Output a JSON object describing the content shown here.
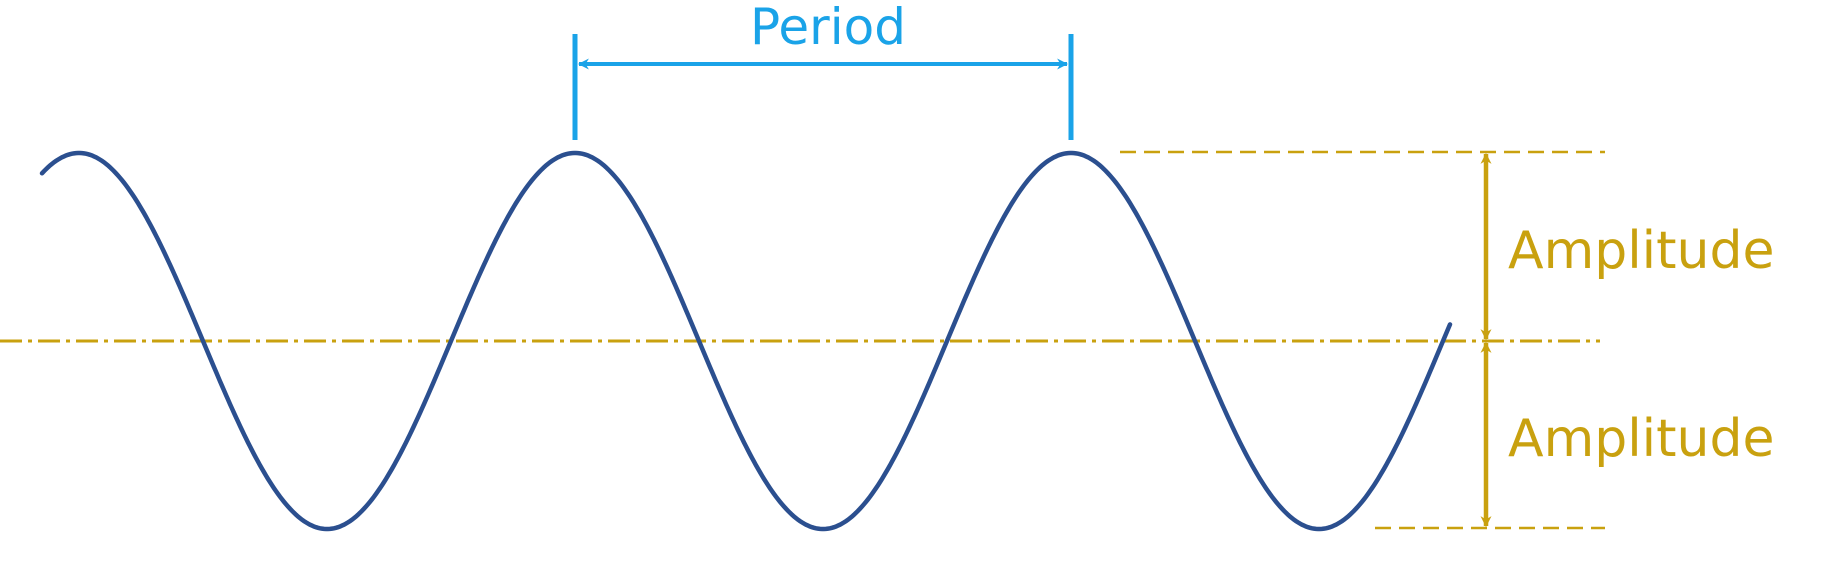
{
  "labels": {
    "period": "Period",
    "amplitude_upper": "Amplitude",
    "amplitude_lower": "Amplitude"
  },
  "colors": {
    "wave": "#2b4f8f",
    "period": "#1aa3e8",
    "amplitude": "#c9a10f"
  }
}
